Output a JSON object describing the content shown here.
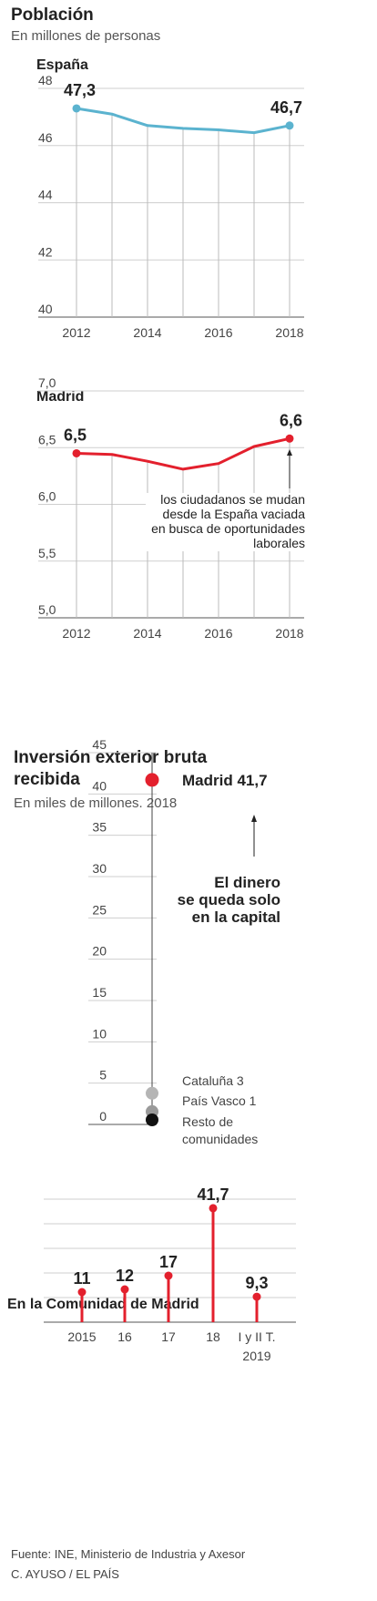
{
  "title": "Población",
  "subtitle": "En millones de personas",
  "source": "Fuente: INE, Ministerio de Industria y Axesor",
  "credit": "C. AYUSO / EL PAÍS",
  "colors": {
    "spain": "#5bb3cf",
    "red": "#e3202d",
    "grey1": "#b5b5b5",
    "grey2": "#9a9a9a",
    "black": "#111111"
  },
  "chart_data": [
    {
      "type": "line",
      "title": "España",
      "x": [
        2012,
        2013,
        2014,
        2015,
        2016,
        2017,
        2018
      ],
      "series": [
        {
          "values": [
            47.3,
            47.1,
            46.7,
            46.6,
            46.55,
            46.45,
            46.7
          ]
        }
      ],
      "ylim": [
        40,
        48
      ],
      "yticks": [
        40,
        42,
        44,
        46,
        48
      ],
      "xticks": [
        2012,
        2014,
        2016,
        2018
      ],
      "start_label": "47,3",
      "end_label": "46,7",
      "grid": true
    },
    {
      "type": "line",
      "title": "Madrid",
      "x": [
        2012,
        2013,
        2014,
        2015,
        2016,
        2017,
        2018
      ],
      "series": [
        {
          "values": [
            6.45,
            6.44,
            6.38,
            6.31,
            6.36,
            6.51,
            6.58
          ]
        }
      ],
      "ylim": [
        5.0,
        7.0
      ],
      "yticks": [
        "5,0",
        "5,5",
        "6,0",
        "6,5",
        "7,0"
      ],
      "xticks": [
        2012,
        2014,
        2016,
        2018
      ],
      "start_label": "6,5",
      "end_label": "6,6",
      "annotation": [
        "los ciudadanos se mudan",
        "desde la España vaciada",
        "en busca de oportunidades",
        "laborales"
      ],
      "grid": true
    },
    {
      "type": "scatter",
      "title": "Inversión exterior bruta",
      "title_line2": "recibida",
      "subtitle": "En miles de millones. 2018",
      "ylim": [
        0,
        45
      ],
      "yticks": [
        0,
        5,
        10,
        15,
        20,
        25,
        30,
        35,
        40,
        45
      ],
      "points": [
        {
          "label": "Madrid 41,7",
          "value": 41.7
        },
        {
          "label": "Cataluña 3",
          "value": 3
        },
        {
          "label": "País Vasco 1",
          "value": 1
        },
        {
          "label_lines": [
            "Resto de",
            "comunidades"
          ],
          "value": 0
        }
      ],
      "annotation": [
        "El dinero",
        "se queda solo",
        "en la capital"
      ]
    },
    {
      "type": "bar",
      "title": "En la Comunidad de Madrid",
      "categories": [
        "2015",
        "16",
        "17",
        "18",
        "I y II T."
      ],
      "category_sub": [
        "",
        "",
        "",
        "",
        "2019"
      ],
      "values": [
        11,
        12,
        17,
        41.7,
        9.3
      ],
      "value_labels": [
        "11",
        "12",
        "17",
        "41,7",
        "9,3"
      ],
      "ylim": [
        0,
        45
      ]
    }
  ]
}
